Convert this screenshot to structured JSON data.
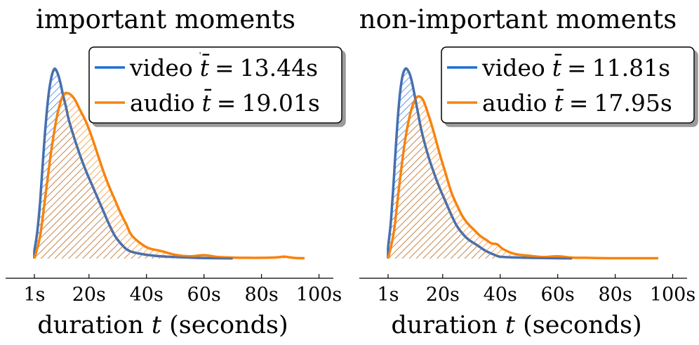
{
  "colors": {
    "video": "#1f6fd6",
    "audio": "#f7830f",
    "overlap": "#5a6f98"
  },
  "chart_data": [
    {
      "type": "area",
      "title": "important moments",
      "xlabel": "duration t (seconds)",
      "xlabel_parts": {
        "pre": "duration ",
        "var": "t",
        "post": " (seconds)"
      },
      "ylabel": "",
      "grid": false,
      "legend_position": "top-right",
      "xlim": [
        -9,
        105
      ],
      "ylim": [
        0,
        1.0
      ],
      "xticks": [
        {
          "value": 1,
          "label": "1s"
        },
        {
          "value": 20,
          "label": "20s"
        },
        {
          "value": 40,
          "label": "40s"
        },
        {
          "value": 60,
          "label": "60s"
        },
        {
          "value": 80,
          "label": "80s"
        },
        {
          "value": 100,
          "label": "100s"
        }
      ],
      "series": [
        {
          "name": "video",
          "legend_label": "video",
          "legend_stat": "13.44s",
          "x": [
            1,
            2,
            3,
            4,
            5,
            6,
            7,
            8,
            9,
            10,
            11,
            12,
            13,
            15,
            17,
            19,
            21,
            23,
            25,
            27,
            29,
            31,
            33,
            35,
            40,
            45,
            50,
            55,
            60,
            65,
            70
          ],
          "y": [
            0.04,
            0.14,
            0.3,
            0.52,
            0.72,
            0.87,
            0.96,
            1.0,
            0.98,
            0.93,
            0.86,
            0.8,
            0.73,
            0.63,
            0.54,
            0.46,
            0.39,
            0.32,
            0.25,
            0.18,
            0.12,
            0.08,
            0.05,
            0.035,
            0.02,
            0.012,
            0.008,
            0.005,
            0.003,
            0.002,
            0.001
          ]
        },
        {
          "name": "audio",
          "legend_label": "audio",
          "legend_stat": "19.01s",
          "x": [
            1,
            3,
            5,
            7,
            9,
            11,
            13,
            15,
            17,
            19,
            21,
            23,
            25,
            27,
            29,
            31,
            33,
            35,
            40,
            45,
            50,
            55,
            60,
            65,
            70,
            75,
            80,
            85,
            88,
            90,
            92,
            95
          ],
          "y": [
            0.0,
            0.12,
            0.35,
            0.58,
            0.76,
            0.86,
            0.87,
            0.84,
            0.78,
            0.72,
            0.64,
            0.55,
            0.46,
            0.38,
            0.31,
            0.24,
            0.18,
            0.12,
            0.06,
            0.04,
            0.02,
            0.012,
            0.018,
            0.008,
            0.005,
            0.004,
            0.004,
            0.006,
            0.01,
            0.006,
            0.003,
            0.002
          ]
        }
      ]
    },
    {
      "type": "area",
      "title": "non-important moments",
      "xlabel": "duration t (seconds)",
      "xlabel_parts": {
        "pre": "duration ",
        "var": "t",
        "post": " (seconds)"
      },
      "ylabel": "",
      "grid": false,
      "legend_position": "top-right",
      "xlim": [
        -9,
        105
      ],
      "ylim": [
        0,
        1.0
      ],
      "xticks": [
        {
          "value": 1,
          "label": "1s"
        },
        {
          "value": 20,
          "label": "20s"
        },
        {
          "value": 40,
          "label": "40s"
        },
        {
          "value": 60,
          "label": "60s"
        },
        {
          "value": 80,
          "label": "80s"
        },
        {
          "value": 100,
          "label": "100s"
        }
      ],
      "series": [
        {
          "name": "video",
          "legend_label": "video",
          "legend_stat": "11.81s",
          "x": [
            1,
            2,
            3,
            4,
            5,
            6,
            7,
            8,
            9,
            10,
            11,
            12,
            13,
            15,
            17,
            19,
            21,
            23,
            25,
            27,
            29,
            31,
            33,
            35,
            38,
            40,
            45,
            50,
            55,
            60,
            65
          ],
          "y": [
            0.06,
            0.2,
            0.42,
            0.66,
            0.85,
            0.96,
            1.0,
            0.99,
            0.95,
            0.88,
            0.8,
            0.72,
            0.65,
            0.54,
            0.45,
            0.37,
            0.3,
            0.23,
            0.17,
            0.13,
            0.1,
            0.08,
            0.06,
            0.04,
            0.02,
            0.01,
            0.006,
            0.004,
            0.003,
            0.002,
            0.001
          ]
        },
        {
          "name": "audio",
          "legend_label": "audio",
          "legend_stat": "17.95s",
          "x": [
            1,
            3,
            5,
            7,
            9,
            11,
            13,
            15,
            17,
            19,
            21,
            23,
            25,
            27,
            29,
            31,
            33,
            35,
            37,
            39,
            41,
            45,
            50,
            55,
            60,
            65,
            70,
            80,
            95
          ],
          "y": [
            0.0,
            0.14,
            0.4,
            0.63,
            0.78,
            0.85,
            0.84,
            0.76,
            0.66,
            0.55,
            0.45,
            0.35,
            0.28,
            0.22,
            0.18,
            0.15,
            0.12,
            0.1,
            0.08,
            0.075,
            0.05,
            0.025,
            0.015,
            0.008,
            0.012,
            0.005,
            0.004,
            0.002,
            0.002
          ]
        }
      ]
    }
  ]
}
